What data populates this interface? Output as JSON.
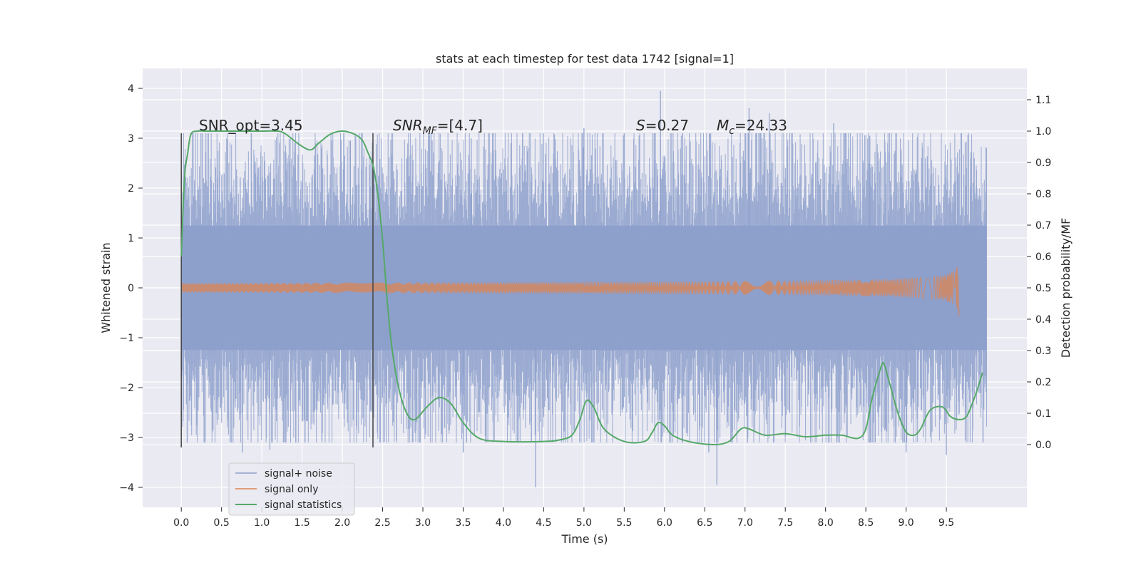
{
  "chart_data": {
    "type": "line",
    "title": "stats at each timestep for test data 1742 [signal=1]",
    "xlabel": "Time (s)",
    "ylabel": "Whitened strain",
    "y2label": "Detection probability/MF",
    "xlim": [
      -0.48,
      10.5
    ],
    "ylim": [
      -4.4,
      4.4
    ],
    "y2lim": [
      -0.2,
      1.2
    ],
    "x_ticks": [
      0.0,
      0.5,
      1.0,
      1.5,
      2.0,
      2.5,
      3.0,
      3.5,
      4.0,
      4.5,
      5.0,
      5.5,
      6.0,
      6.5,
      7.0,
      7.5,
      8.0,
      8.5,
      9.0,
      9.5
    ],
    "y_ticks": [
      -4,
      -3,
      -2,
      -1,
      0,
      1,
      2,
      3,
      4
    ],
    "y2_ticks": [
      0.0,
      0.1,
      0.2,
      0.3,
      0.4,
      0.5,
      0.6,
      0.7,
      0.8,
      0.9,
      1.0,
      1.1
    ],
    "grid": true,
    "legend_position": "lower-left",
    "colors": {
      "signal_noise": "#8c9fcb",
      "signal_only": "#dd8452",
      "signal_statistics": "#55a868",
      "background": "#eaeaf2",
      "grid": "#ffffff",
      "vline": "#444444"
    },
    "annotations": {
      "snr_opt": "SNR_opt=3.45",
      "snr_mf_label": "SNR",
      "snr_mf_sub": "MF",
      "snr_mf_value": "=[4.7]",
      "s_label": "S",
      "s_value": "=0.27",
      "mc_label": "M",
      "mc_sub": "c",
      "mc_value": "=24.33"
    },
    "vertical_lines": [
      0.0,
      2.38
    ],
    "series": [
      {
        "name": "signal+ noise",
        "style": "noise",
        "x_range": [
          0.0,
          10.0
        ],
        "typical_range": [
          -1.9,
          1.9
        ],
        "extremes": [
          {
            "x": 0.76,
            "y": -3.3
          },
          {
            "x": 1.1,
            "y": -3.25
          },
          {
            "x": 2.1,
            "y": 2.95
          },
          {
            "x": 3.5,
            "y": -3.3
          },
          {
            "x": 3.6,
            "y": 3.0
          },
          {
            "x": 4.4,
            "y": -4.0
          },
          {
            "x": 5.0,
            "y": 3.2
          },
          {
            "x": 5.95,
            "y": 3.95
          },
          {
            "x": 6.55,
            "y": -3.3
          },
          {
            "x": 6.65,
            "y": -3.95
          },
          {
            "x": 7.05,
            "y": 3.6
          },
          {
            "x": 7.3,
            "y": 3.5
          },
          {
            "x": 8.1,
            "y": 3.3
          },
          {
            "x": 8.55,
            "y": 3.05
          },
          {
            "x": 9.0,
            "y": -3.3
          },
          {
            "x": 9.5,
            "y": -3.35
          }
        ]
      },
      {
        "name": "signal only",
        "style": "chirp",
        "x_range": [
          0.0,
          9.66
        ],
        "peak_amplitude": 0.7,
        "peak_time": 9.66
      },
      {
        "name": "signal statistics",
        "style": "line",
        "axis": "right",
        "x": [
          0.0,
          0.04,
          0.08,
          0.12,
          0.2,
          0.3,
          0.5,
          0.8,
          1.0,
          1.2,
          1.3,
          1.45,
          1.6,
          1.7,
          1.85,
          2.0,
          2.15,
          2.25,
          2.32,
          2.38,
          2.44,
          2.5,
          2.56,
          2.62,
          2.7,
          2.8,
          2.9,
          3.05,
          3.2,
          3.35,
          3.5,
          3.7,
          4.0,
          4.5,
          4.7,
          4.85,
          4.95,
          5.03,
          5.12,
          5.25,
          5.5,
          5.75,
          5.85,
          5.92,
          6.0,
          6.1,
          6.3,
          6.6,
          6.8,
          6.95,
          7.05,
          7.25,
          7.5,
          7.75,
          8.0,
          8.2,
          8.4,
          8.5,
          8.58,
          8.68,
          8.72,
          8.78,
          8.9,
          9.0,
          9.1,
          9.18,
          9.3,
          9.45,
          9.55,
          9.65,
          9.75,
          9.85,
          9.95
        ],
        "y": [
          0.6,
          0.85,
          0.93,
          0.99,
          1.0,
          1.0,
          1.0,
          1.0,
          1.0,
          1.0,
          0.99,
          0.96,
          0.94,
          0.96,
          0.99,
          1.0,
          0.99,
          0.97,
          0.93,
          0.89,
          0.8,
          0.65,
          0.45,
          0.3,
          0.18,
          0.1,
          0.08,
          0.12,
          0.15,
          0.13,
          0.07,
          0.02,
          0.01,
          0.01,
          0.015,
          0.03,
          0.08,
          0.14,
          0.12,
          0.05,
          0.01,
          0.01,
          0.04,
          0.07,
          0.06,
          0.03,
          0.01,
          0.0,
          0.01,
          0.05,
          0.05,
          0.03,
          0.035,
          0.025,
          0.03,
          0.03,
          0.02,
          0.05,
          0.15,
          0.24,
          0.26,
          0.21,
          0.1,
          0.04,
          0.03,
          0.05,
          0.11,
          0.12,
          0.09,
          0.08,
          0.09,
          0.15,
          0.23
        ]
      }
    ]
  }
}
